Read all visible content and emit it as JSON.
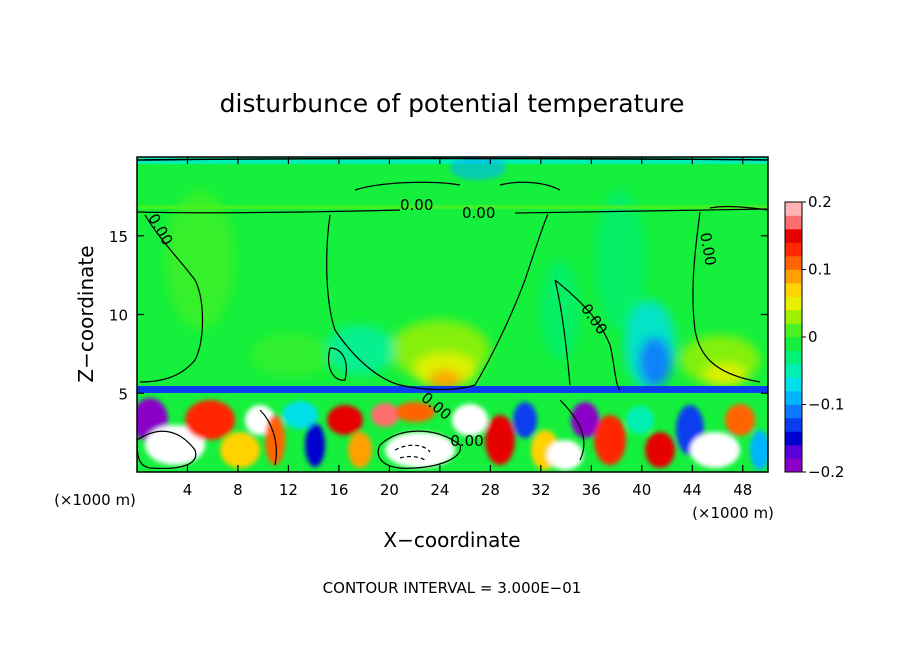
{
  "chart_data": {
    "type": "heatmap",
    "title": "disturbunce of potential temperature",
    "xlabel": "X−coordinate",
    "ylabel": "Z−coordinate",
    "x_unit": "(×1000 m)",
    "y_unit": "(×1000 m)",
    "xlim": [
      0,
      50
    ],
    "ylim": [
      0,
      20
    ],
    "x_ticks": [
      4,
      8,
      12,
      16,
      20,
      24,
      28,
      32,
      36,
      40,
      44,
      48
    ],
    "y_ticks": [
      5,
      10,
      15
    ],
    "x_tick_labels": [
      "4",
      "8",
      "12",
      "16",
      "20",
      "24",
      "28",
      "32",
      "36",
      "40",
      "44",
      "48"
    ],
    "y_tick_labels": [
      "5",
      "10",
      "15"
    ],
    "colorbar": {
      "min": -0.2,
      "max": 0.2,
      "tick_values": [
        0.2,
        0.1,
        0,
        -0.1,
        -0.2
      ],
      "tick_labels": [
        "0.2",
        "0.1",
        "0",
        "−0.1",
        "−0.2"
      ],
      "colors": [
        "#8b00c8",
        "#5a00d8",
        "#0000d0",
        "#0a3cf0",
        "#0a78ff",
        "#00b4ff",
        "#00e0e8",
        "#00f0b4",
        "#00f078",
        "#14f03c",
        "#4cf020",
        "#a0f000",
        "#e6f000",
        "#ffd200",
        "#ffa000",
        "#ff6400",
        "#ff2800",
        "#e60000",
        "#ff6e6e",
        "#ffb4b4"
      ]
    },
    "contour_labels": [
      "0.00",
      "0.00",
      "0.00",
      "0.00",
      "0.00",
      "0.00",
      "0.00"
    ],
    "footer": "CONTOUR INTERVAL = 3.000E−01",
    "grid": false
  }
}
